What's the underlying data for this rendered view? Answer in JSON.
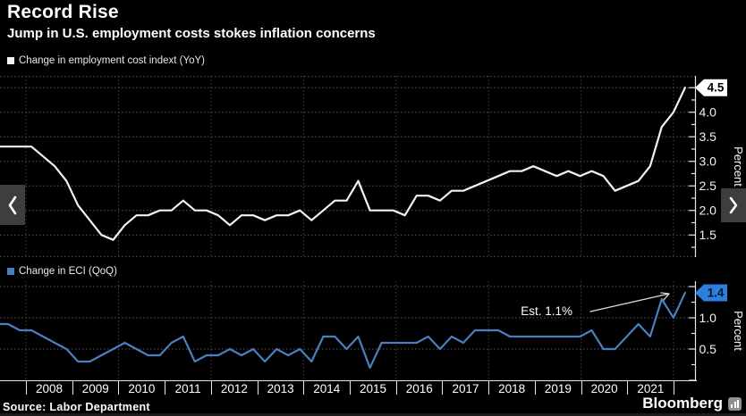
{
  "header": {
    "title": "Record Rise",
    "subtitle": "Jump in U.S. employment costs stokes inflation concerns"
  },
  "legends": [
    {
      "label": "Change in employment cost indext (YoY)",
      "color": "#f2f2f2"
    },
    {
      "label": "Change in ECI (QoQ)",
      "color": "#4a7fc0"
    }
  ],
  "nav": {
    "prev": "‹",
    "next": "›"
  },
  "footer": {
    "source": "Source: Labor Department",
    "brand": "Bloomberg"
  },
  "colors": {
    "background": "#000000",
    "grid_h": "#5a5a5a",
    "grid_v": "#464646",
    "axis": "#e8e8e8",
    "yoy_line": "#f2f2f2",
    "qoq_line": "#4a7fc0",
    "yoy_badge_bg": "#ffffff",
    "yoy_badge_fg": "#000000",
    "qoq_badge_bg": "#2e7fdb",
    "qoq_badge_fg": "#00172b"
  },
  "axis": {
    "years": [
      "2008",
      "2009",
      "2010",
      "2011",
      "2012",
      "2013",
      "2014",
      "2015",
      "2016",
      "2017",
      "2018",
      "2019",
      "2020",
      "2021"
    ]
  },
  "chart_data": [
    {
      "type": "line",
      "name": "eci_yoy",
      "legend": "Change in employment cost indext (YoY)",
      "ylabel": "Percent",
      "frequency": "quarterly",
      "x_start": "2007 Q3",
      "x_end": "2022 Q1",
      "ylim": [
        1.05,
        4.74
      ],
      "ygrid": [
        1.5,
        2.0,
        2.5,
        3.0,
        3.5,
        4.0,
        4.5
      ],
      "ytick_labels": [
        1.5,
        2.0,
        2.5,
        3.0,
        3.5,
        4.0
      ],
      "badge": {
        "text": "4.5",
        "value": 4.5
      },
      "values": [
        3.3,
        3.3,
        3.3,
        3.1,
        2.9,
        2.6,
        2.1,
        1.8,
        1.5,
        1.4,
        1.7,
        1.9,
        1.9,
        2.0,
        2.0,
        2.2,
        2.0,
        2.0,
        1.9,
        1.7,
        1.9,
        1.9,
        1.8,
        1.9,
        1.9,
        2.0,
        1.8,
        2.0,
        2.2,
        2.2,
        2.6,
        2.0,
        2.0,
        2.0,
        1.9,
        2.3,
        2.3,
        2.2,
        2.4,
        2.4,
        2.5,
        2.6,
        2.7,
        2.8,
        2.8,
        2.9,
        2.8,
        2.7,
        2.8,
        2.7,
        2.8,
        2.7,
        2.4,
        2.5,
        2.6,
        2.9,
        3.7,
        4.0,
        4.5
      ]
    },
    {
      "type": "line",
      "name": "eci_qoq",
      "legend": "Change in ECI (QoQ)",
      "ylabel": "Percent",
      "frequency": "quarterly",
      "x_start": "2007 Q3",
      "x_end": "2022 Q1",
      "ylim": [
        0,
        1.586
      ],
      "ygrid": [
        0.5,
        1.0,
        1.5
      ],
      "ytick_labels": [
        0.5,
        1.0
      ],
      "badge": {
        "text": "1.4",
        "value": 1.4
      },
      "annotation": {
        "text": "Est. 1.1%"
      },
      "values": [
        0.9,
        0.8,
        0.8,
        0.7,
        0.6,
        0.5,
        0.3,
        0.3,
        0.4,
        0.5,
        0.6,
        0.5,
        0.4,
        0.4,
        0.6,
        0.7,
        0.3,
        0.4,
        0.4,
        0.5,
        0.4,
        0.5,
        0.3,
        0.5,
        0.4,
        0.5,
        0.3,
        0.7,
        0.7,
        0.5,
        0.7,
        0.2,
        0.6,
        0.6,
        0.6,
        0.6,
        0.7,
        0.5,
        0.7,
        0.6,
        0.8,
        0.8,
        0.8,
        0.7,
        0.7,
        0.7,
        0.7,
        0.7,
        0.7,
        0.7,
        0.8,
        0.5,
        0.5,
        0.7,
        0.9,
        0.7,
        1.3,
        1.0,
        1.4
      ]
    }
  ]
}
